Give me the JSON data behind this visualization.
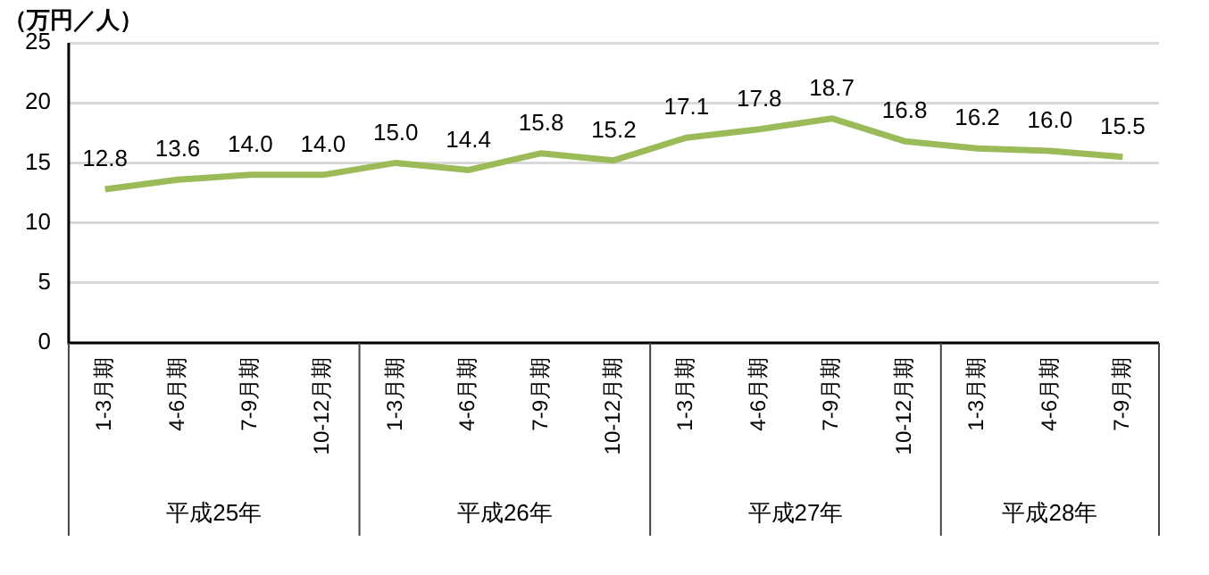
{
  "chart_data": {
    "type": "line",
    "ylabel": "（万円／人）",
    "categories": [
      "1-3月期",
      "4-6月期",
      "7-9月期",
      "10-12月期",
      "1-3月期",
      "4-6月期",
      "7-9月期",
      "10-12月期",
      "1-3月期",
      "4-6月期",
      "7-9月期",
      "10-12月期",
      "1-3月期",
      "4-6月期",
      "7-9月期"
    ],
    "series": [
      {
        "color": "#9bbb59",
        "values": [
          12.8,
          13.6,
          14.0,
          14.0,
          15.0,
          14.4,
          15.8,
          15.2,
          17.1,
          17.8,
          18.7,
          16.8,
          16.2,
          16.0,
          15.5
        ],
        "value_labels": [
          "12.8",
          "13.6",
          "14.0",
          "14.0",
          "15.0",
          "14.4",
          "15.8",
          "15.2",
          "17.1",
          "17.8",
          "18.7",
          "16.8",
          "16.2",
          "16.0",
          "15.5"
        ]
      }
    ],
    "ylim": [
      0,
      25
    ],
    "yticks": [
      0,
      5,
      10,
      15,
      20,
      25
    ],
    "grid": "y",
    "legend": false,
    "marker": "none",
    "line_style": "solid",
    "annotations": [
      "平成25年",
      "平成26年",
      "平成27年",
      "平成28年"
    ]
  }
}
